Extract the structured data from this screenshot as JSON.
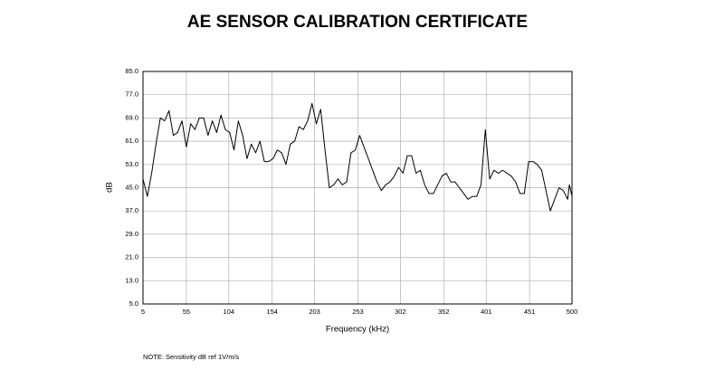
{
  "chart_data": {
    "type": "line",
    "title": "AE SENSOR CALIBRATION CERTIFICATE",
    "x_label": "Frequency (kHz)",
    "y_label": "dB",
    "note": "NOTE:  Sensitivity dB ref 1V/m/s",
    "xlim": [
      5,
      500
    ],
    "ylim": [
      5,
      85
    ],
    "xticks": [
      5,
      55,
      104,
      154,
      203,
      253,
      302,
      352,
      401,
      451,
      500
    ],
    "yticks": [
      {
        "value": 5,
        "label": "5.0"
      },
      {
        "value": 13,
        "label": "13.0"
      },
      {
        "value": 21,
        "label": "21.0"
      },
      {
        "value": 29,
        "label": "29.0"
      },
      {
        "value": 37,
        "label": "37.0"
      },
      {
        "value": 45,
        "label": "45.0"
      },
      {
        "value": 53,
        "label": "53.0"
      },
      {
        "value": 61,
        "label": "61.0"
      },
      {
        "value": 69,
        "label": "69.0"
      },
      {
        "value": 77,
        "label": "77.0"
      },
      {
        "value": 85,
        "label": "85.0"
      }
    ],
    "grid": true,
    "color": "#000000",
    "x": [
      5,
      10,
      15,
      20,
      25,
      30,
      35,
      40,
      45,
      50,
      55,
      60,
      65,
      70,
      75,
      80,
      85,
      90,
      95,
      100,
      105,
      110,
      115,
      120,
      125,
      130,
      135,
      140,
      145,
      150,
      155,
      160,
      165,
      170,
      175,
      180,
      185,
      190,
      195,
      200,
      205,
      210,
      215,
      220,
      225,
      230,
      235,
      240,
      245,
      250,
      255,
      260,
      265,
      270,
      275,
      280,
      285,
      290,
      295,
      300,
      305,
      310,
      315,
      320,
      325,
      330,
      335,
      340,
      345,
      350,
      355,
      360,
      365,
      370,
      375,
      380,
      385,
      390,
      395,
      400,
      405,
      410,
      415,
      420,
      425,
      430,
      435,
      440,
      445,
      450,
      455,
      460,
      465,
      470,
      475,
      480,
      485,
      490,
      495,
      497,
      500
    ],
    "values": [
      48,
      42,
      50,
      60,
      69,
      68,
      71.5,
      63,
      64,
      68,
      59,
      67,
      65,
      69,
      69,
      63,
      68,
      64,
      70,
      65,
      64,
      58,
      68,
      63,
      55,
      60,
      57,
      61,
      54,
      54,
      55,
      58,
      57,
      53,
      60,
      61,
      66,
      65,
      68,
      74,
      67,
      72,
      58,
      45,
      46,
      48,
      46,
      47,
      57,
      58,
      63,
      59,
      55,
      51,
      47,
      44,
      46,
      47,
      49,
      52,
      50,
      56,
      56,
      50,
      51,
      46,
      43,
      43,
      46,
      49,
      50,
      47,
      47,
      45,
      43,
      41,
      42,
      42,
      46,
      65,
      48,
      51,
      50,
      51,
      50,
      49,
      47,
      43,
      43,
      54,
      54,
      53,
      51,
      44,
      37,
      41,
      45,
      44,
      41,
      46,
      42
    ]
  }
}
